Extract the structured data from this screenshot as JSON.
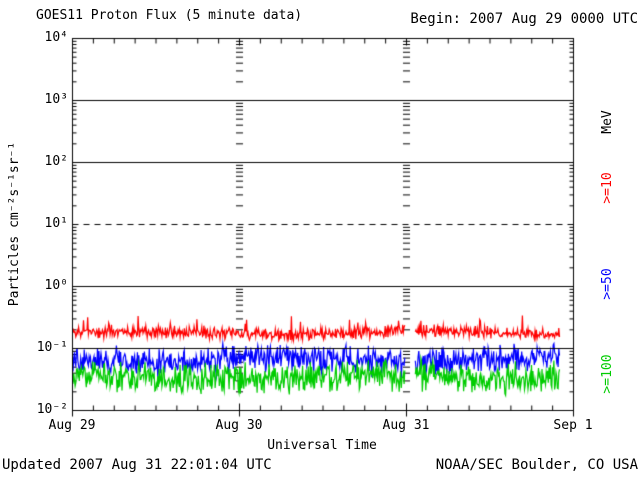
{
  "chart_data": {
    "type": "line",
    "title": "GOES11 Proton Flux (5 minute data)",
    "begin_label": "Begin: 2007 Aug 29 0000 UTC",
    "xlabel": "Universal Time",
    "ylabel": "Particles cm⁻²s⁻¹sr⁻¹",
    "right_axis_label": "MeV",
    "y_scale": "log",
    "ylim": [
      0.01,
      10000
    ],
    "ylim_exponents": [
      -2,
      4
    ],
    "y_tick_labels": [
      "10⁴",
      "10³",
      "10²",
      "10¹",
      "10⁰",
      "10⁻¹",
      "10⁻²"
    ],
    "x_tick_labels": [
      "Aug 29",
      "Aug 30",
      "Aug 31",
      "Sep 1"
    ],
    "x_span_days": 3,
    "x_minor_ticks_per_day": 8,
    "grid": {
      "solid_exponents": [
        3,
        2,
        0,
        -1
      ],
      "dashed_exponents": [
        1
      ]
    },
    "cadence_minutes": 5,
    "data_end_days": 2.917,
    "data_gap_days": [
      1.99,
      2.05
    ],
    "legend_position": "right",
    "series": [
      {
        "name": "Protons >=10 MeV",
        "label": ">=10",
        "color": "#ff0000",
        "typical_flux": 0.18,
        "flux_range": [
          0.11,
          0.47
        ],
        "gen": {
          "seed": 11,
          "base_log": -0.87,
          "amp": 0.12,
          "spike_p": 0.05,
          "spike_amp": 0.3,
          "spike_dir": 1
        }
      },
      {
        "name": "Protons >=50 MeV",
        "label": ">=50",
        "color": "#0000ff",
        "typical_flux": 0.07,
        "flux_range": [
          0.03,
          0.13
        ],
        "gen": {
          "seed": 52,
          "base_log": -1.42,
          "amp": 0.25,
          "spike_p": 0.06,
          "spike_amp": 0.12,
          "spike_dir": -1
        }
      },
      {
        "name": "Protons >=100 MeV",
        "label": ">=100",
        "color": "#00cc00",
        "typical_flux": 0.035,
        "flux_range": [
          0.016,
          0.08
        ],
        "gen": {
          "seed": 100,
          "base_log": -1.75,
          "amp": 0.3,
          "spike_p": 0.08,
          "spike_amp": 0.1,
          "spike_dir": -1
        }
      }
    ]
  },
  "footer": {
    "updated": "Updated 2007 Aug 31 22:01:04 UTC",
    "source": "NOAA/SEC Boulder, CO USA"
  }
}
